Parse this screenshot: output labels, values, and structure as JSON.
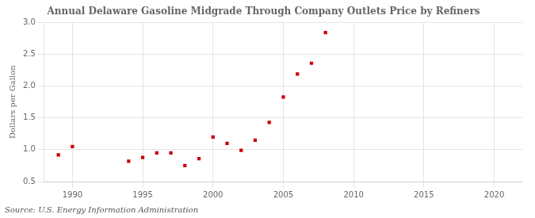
{
  "chart_data": {
    "type": "scatter",
    "title": "Annual Delaware Gasoline Midgrade Through Company Outlets Price by Refiners",
    "ylabel": "Dollars per Gallon",
    "annotations": [
      "Source: U.S. Energy Information Administration"
    ],
    "x": [
      1989,
      1990,
      1994,
      1995,
      1996,
      1997,
      1998,
      1999,
      2000,
      2001,
      2002,
      2003,
      2004,
      2005,
      2006,
      2007,
      2008
    ],
    "values": [
      0.92,
      1.05,
      0.82,
      0.88,
      0.95,
      0.95,
      0.75,
      0.86,
      1.2,
      1.1,
      0.99,
      1.15,
      1.43,
      1.83,
      2.19,
      2.36,
      2.84
    ],
    "color": "#cc0000",
    "marker": "square",
    "xlim": [
      1988,
      2022
    ],
    "xticks": [
      1990,
      1995,
      2000,
      2005,
      2010,
      2015,
      2020
    ],
    "ylim": [
      0.5,
      3.0
    ],
    "yticks": [
      0.5,
      {
        "value": 1.0,
        "label": "1.0"
      },
      1.5,
      {
        "value": 2.0,
        "label": "2.0"
      },
      2.5,
      {
        "value": 3.0,
        "label": "3.0"
      }
    ],
    "grid": true
  }
}
